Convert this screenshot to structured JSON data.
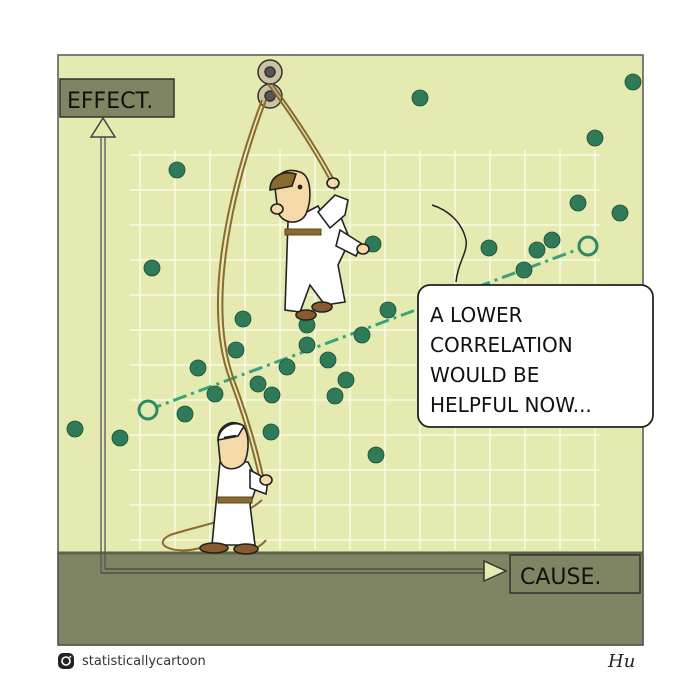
{
  "labels": {
    "effect": "EFFECT.",
    "cause": "CAUSE.",
    "speech_lines": [
      "A LOWER",
      "CORRELATION",
      "WOULD BE",
      "HELPFUL NOW..."
    ],
    "signature": "Hu"
  },
  "credit": {
    "handle": "statisticallycartoon",
    "icon": "instagram-icon"
  },
  "colors": {
    "panel": "#e4eab0",
    "grid": "#f7f9e2",
    "floor": "#7f8563",
    "dots": "#2f7a58",
    "trend": "#3aa37a",
    "label_box": "#7f8563"
  }
}
